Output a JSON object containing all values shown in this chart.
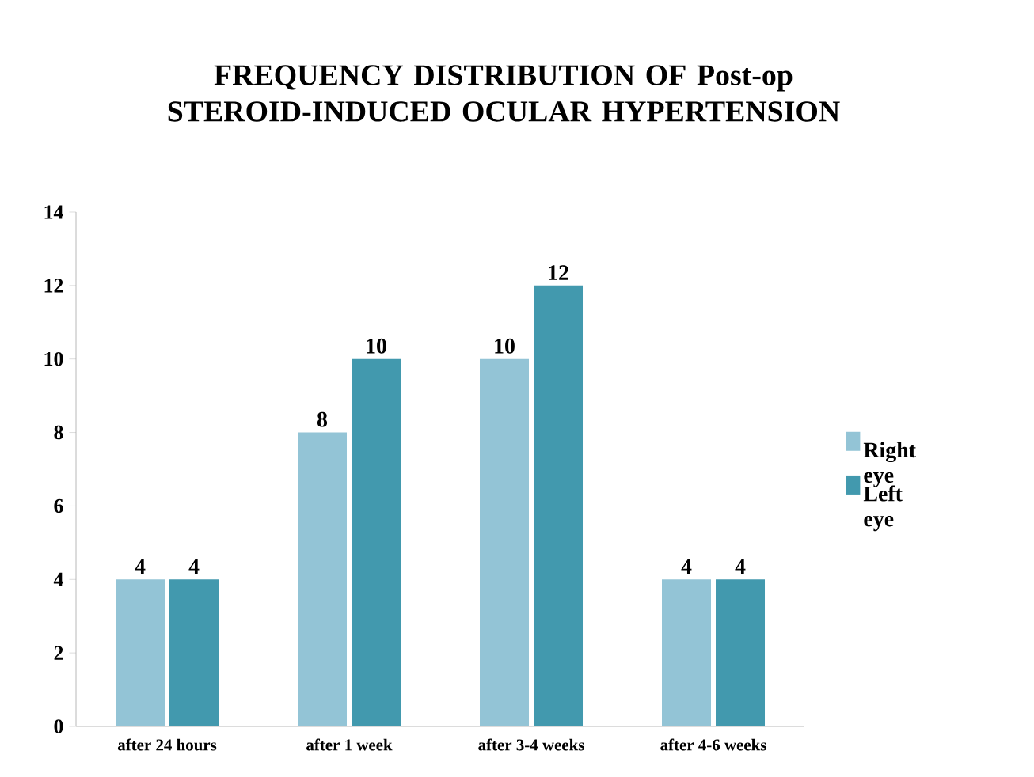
{
  "chart_data": {
    "type": "bar",
    "title": "FREQUENCY DISTRIBUTION OF Post-op STEROID-INDUCED OCULAR HYPERTENSION",
    "categories": [
      "after 24 hours",
      "after 1 week",
      "after 3-4 weeks",
      "after 4-6 weeks"
    ],
    "series": [
      {
        "name": "Right eye",
        "color": "#93c4d6",
        "values": [
          4,
          8,
          10,
          4
        ]
      },
      {
        "name": "Left eye",
        "color": "#4299ae",
        "values": [
          4,
          10,
          12,
          4
        ]
      }
    ],
    "ylim": [
      0,
      14
    ],
    "yticks": [
      0,
      2,
      4,
      6,
      8,
      10,
      12,
      14
    ],
    "data_labels": true,
    "legend": "right",
    "grid": false
  }
}
